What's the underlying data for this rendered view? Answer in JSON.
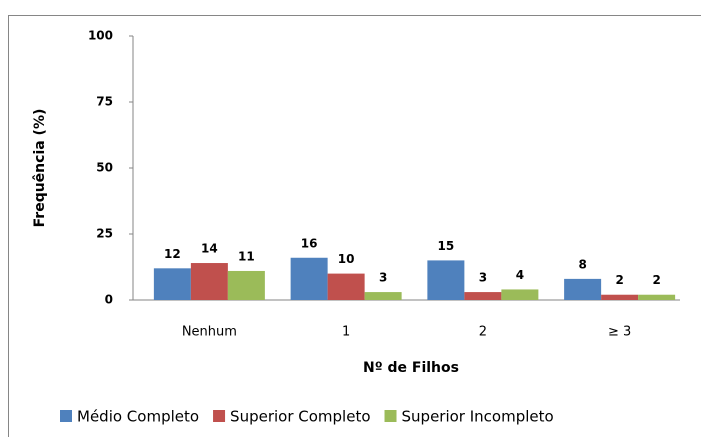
{
  "chart_data": {
    "type": "bar",
    "categories": [
      "Nenhum",
      "1",
      "2",
      "≥ 3"
    ],
    "series": [
      {
        "name": "Médio Completo",
        "color": "#4f81bd",
        "values": [
          12,
          16,
          15,
          8
        ]
      },
      {
        "name": "Superior Completo",
        "color": "#c0504d",
        "values": [
          14,
          10,
          3,
          2
        ]
      },
      {
        "name": "Superior Incompleto",
        "color": "#9bbb59",
        "values": [
          11,
          3,
          4,
          2
        ]
      }
    ],
    "ylim": [
      0,
      100
    ],
    "yticks": [
      0,
      25,
      50,
      75,
      100
    ],
    "y_label": "Frequência (%)",
    "x_label": "Nº de Filhos",
    "grid": false,
    "legend": "bottom"
  }
}
